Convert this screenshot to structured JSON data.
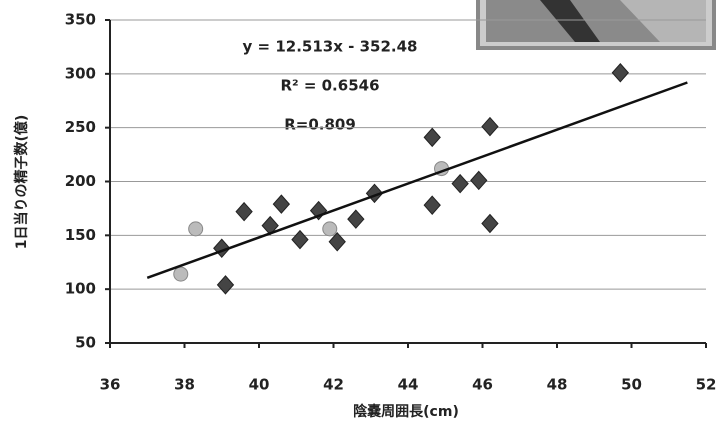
{
  "chart_data": {
    "type": "scatter",
    "xlabel": "陰嚢周囲長(cm)",
    "ylabel": "1日当りの精子数(億)",
    "annotations": [
      "y = 12.513x - 352.48",
      "R² = 0.6546",
      "R=0.809"
    ],
    "xlim": [
      36,
      52
    ],
    "xticks": [
      36,
      38,
      40,
      42,
      44,
      46,
      48,
      50,
      52
    ],
    "ylim": [
      50,
      350
    ],
    "yticks": [
      50,
      100,
      150,
      200,
      250,
      300,
      350
    ],
    "grid": true,
    "series": [
      {
        "marker": "diamond",
        "color": "#444444",
        "x": [
          39.0,
          39.1,
          39.6,
          40.3,
          40.6,
          41.1,
          41.6,
          42.1,
          42.6,
          43.1,
          44.65,
          44.65,
          45.4,
          45.9,
          46.2,
          46.2,
          49.7
        ],
        "values": [
          138,
          104,
          172,
          159,
          179,
          146,
          173,
          144,
          165,
          189,
          241,
          178,
          198,
          201,
          251,
          161,
          301
        ]
      },
      {
        "marker": "circle",
        "color": "#bbbbbb",
        "x": [
          37.9,
          38.3,
          41.9,
          44.9
        ],
        "values": [
          114,
          156,
          156,
          212
        ]
      }
    ],
    "trendline": {
      "slope": 12.513,
      "intercept": -352.48,
      "x": [
        37,
        51.5
      ],
      "color": "#111111"
    }
  }
}
